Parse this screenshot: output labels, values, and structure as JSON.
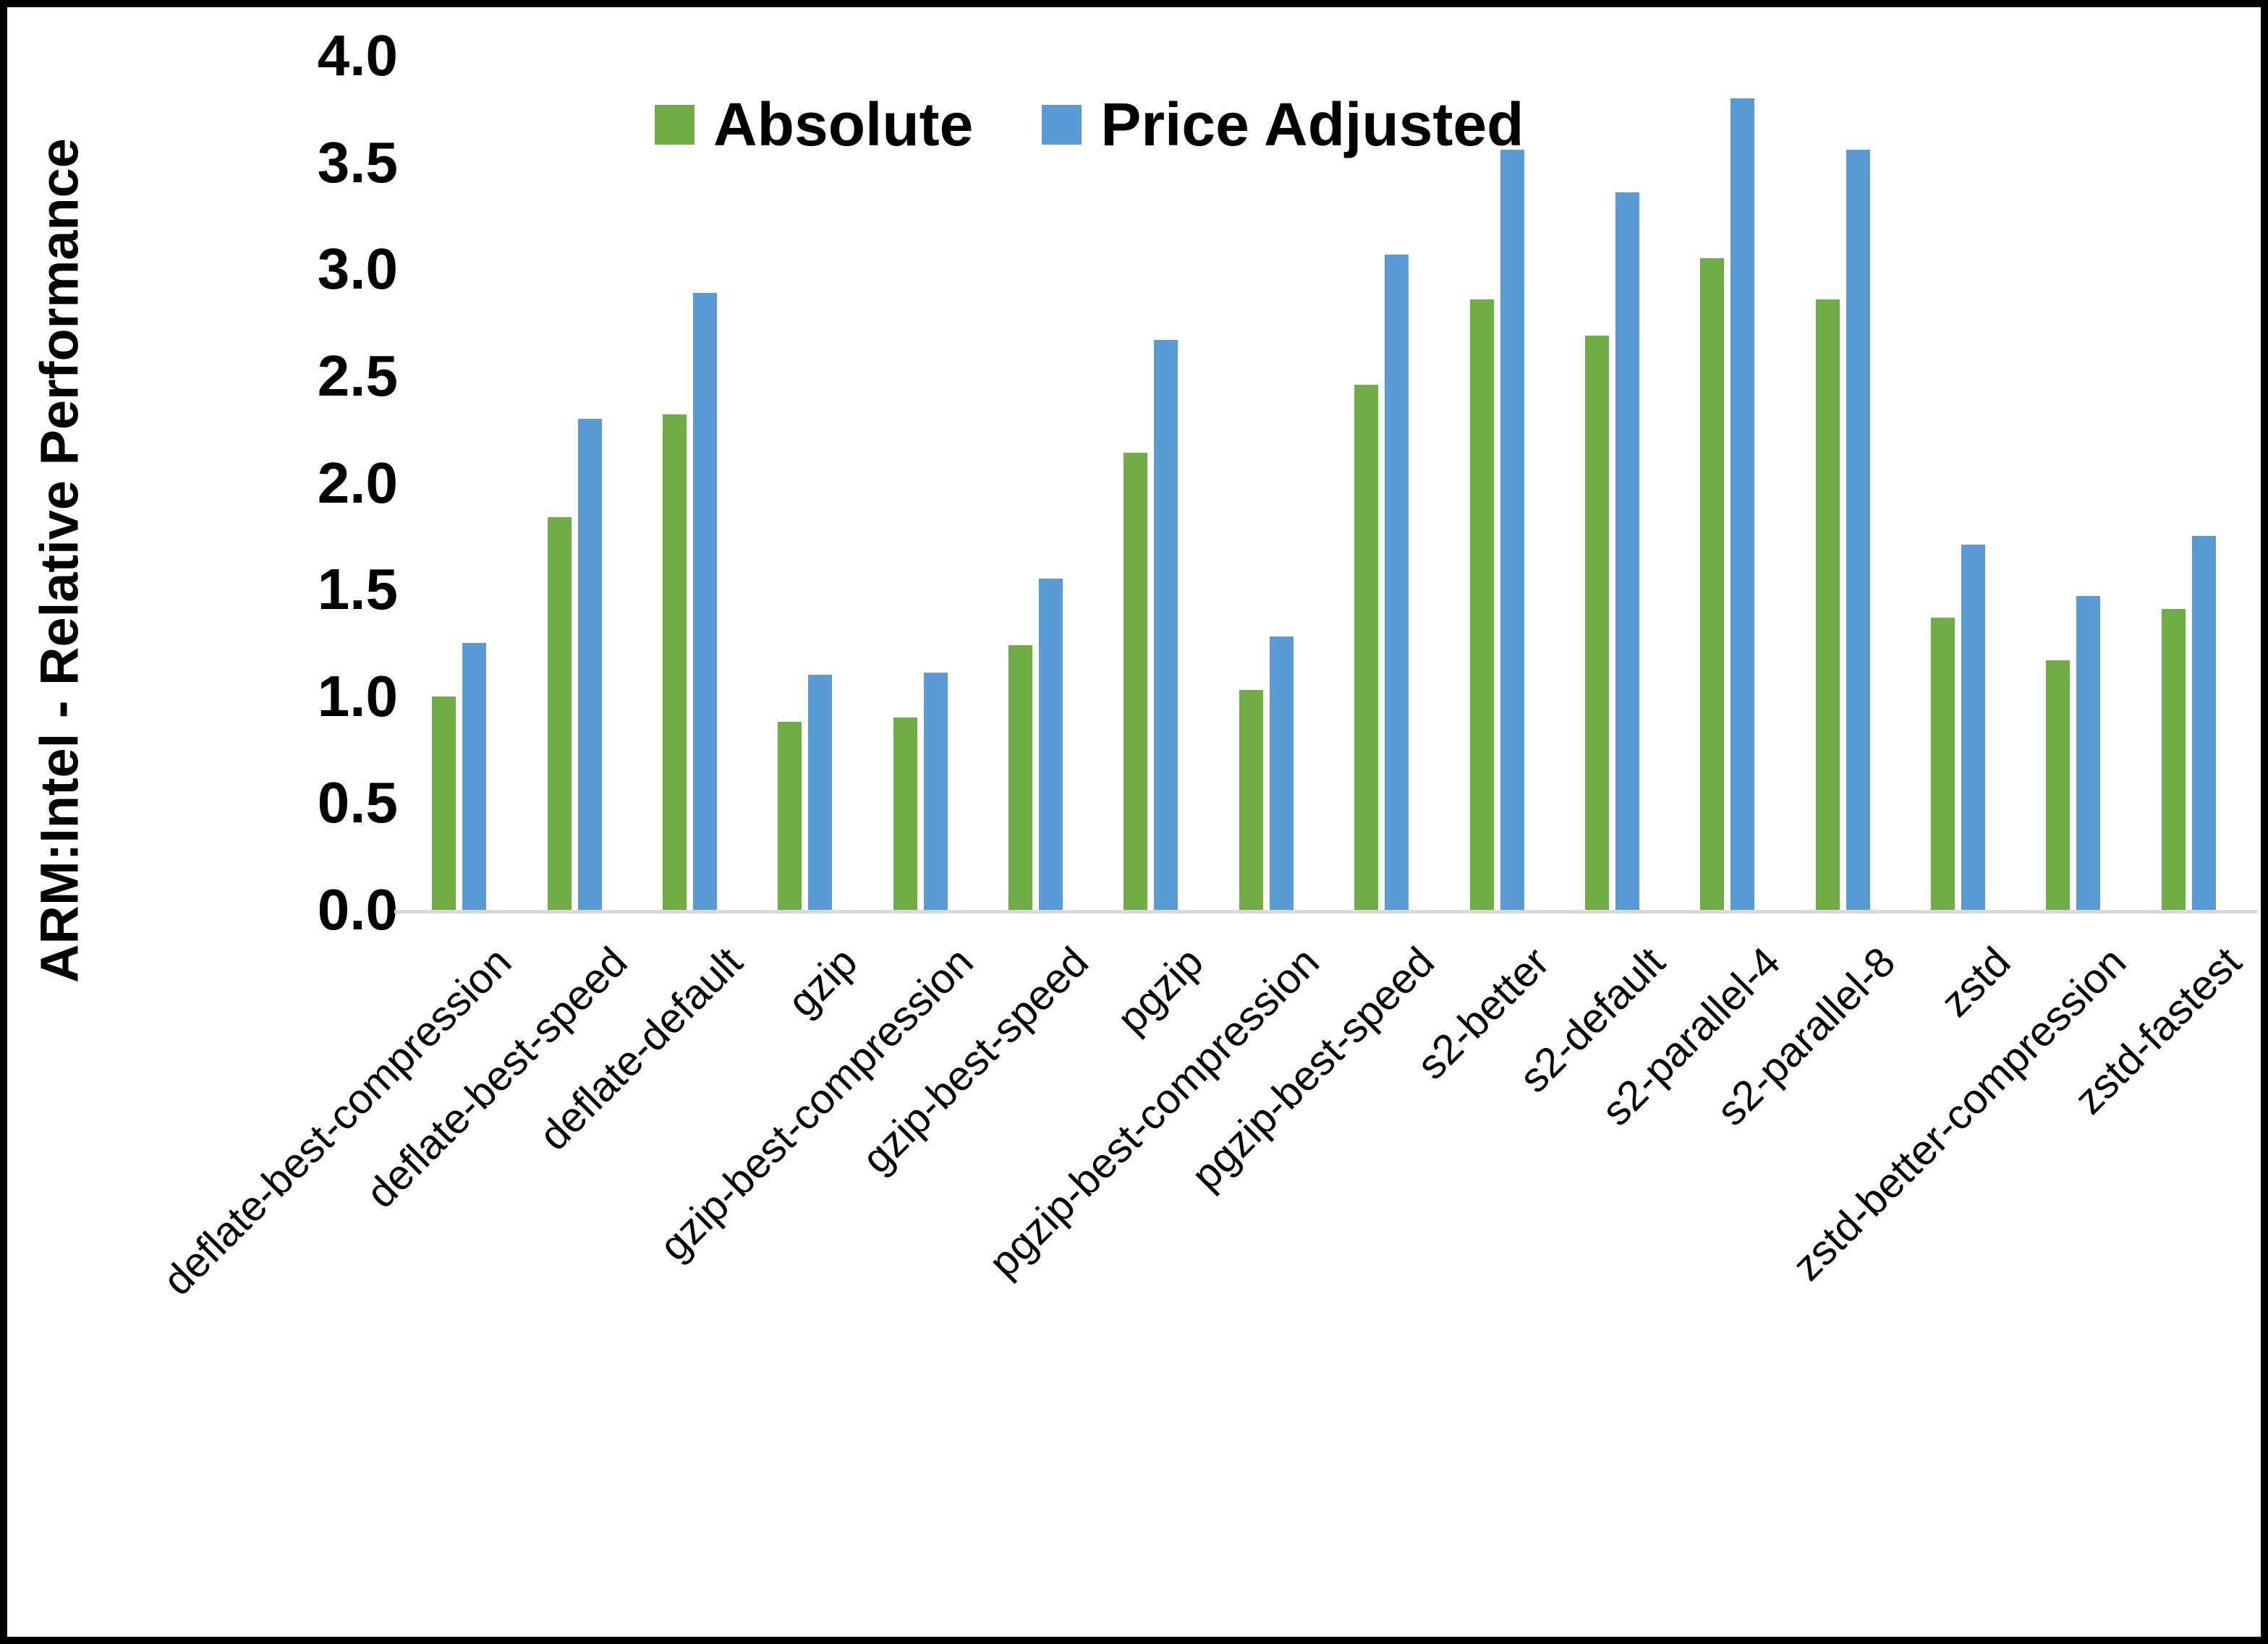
{
  "chart_data": {
    "type": "bar",
    "title": "",
    "xlabel": "",
    "ylabel": "ARM:Intel - Relative Performance",
    "ylim": [
      0.0,
      4.0
    ],
    "ytick_step": 0.5,
    "yticks": [
      "0.0",
      "0.5",
      "1.0",
      "1.5",
      "2.0",
      "2.5",
      "3.0",
      "3.5",
      "4.0"
    ],
    "grid": false,
    "legend_position": "top-center",
    "background_color": "#ffffff",
    "frame_border_color": "#000000",
    "axis_line_color": "#d9d9d9",
    "categories": [
      "deflate-best-compression",
      "deflate-best-speed",
      "deflate-default",
      "gzip",
      "gzip-best-compression",
      "gzip-best-speed",
      "pgzip",
      "pgzip-best-compression",
      "pgzip-best-speed",
      "s2-better",
      "s2-default",
      "s2-parallel-4",
      "s2-parallel-8",
      "zstd",
      "zstd-better-compression",
      "zstd-fastest"
    ],
    "series": [
      {
        "name": "Absolute",
        "color": "#70AD47",
        "values": [
          1.0,
          1.84,
          2.32,
          0.88,
          0.9,
          1.24,
          2.14,
          1.03,
          2.46,
          2.86,
          2.69,
          3.05,
          2.86,
          1.37,
          1.17,
          1.41
        ]
      },
      {
        "name": "Price Adjusted",
        "color": "#5B9BD5",
        "values": [
          1.25,
          2.3,
          2.89,
          1.1,
          1.11,
          1.55,
          2.67,
          1.28,
          3.07,
          3.56,
          3.36,
          3.8,
          3.56,
          1.71,
          1.47,
          1.75
        ]
      }
    ]
  }
}
